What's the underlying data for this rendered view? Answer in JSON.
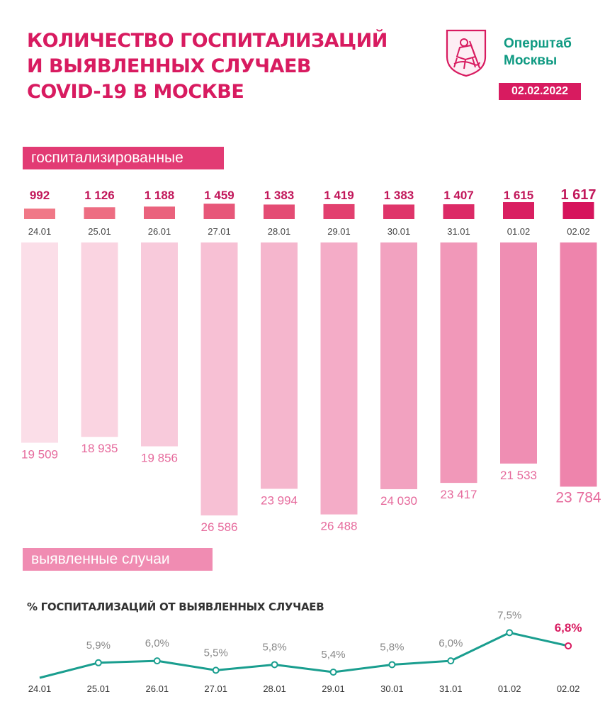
{
  "header": {
    "title_lines": [
      "КОЛИЧЕСТВО ГОСПИТАЛИЗАЦИЙ",
      "И ВЫЯВЛЕННЫХ СЛУЧАЕВ",
      "COVID-19 В МОСКВЕ"
    ],
    "org_lines": [
      "Оперштаб",
      "Москвы"
    ],
    "date": "02.02.2022"
  },
  "labels": {
    "hospitalized": "госпитализированные",
    "cases": "выявленные случаи",
    "rate_title": "% ГОСПИТАЛИЗАЦИЙ ОТ ВЫЯВЛЕННЫХ СЛУЧАЕВ"
  },
  "colors": {
    "accent": "#d81b60",
    "teal": "#1a9e8f"
  },
  "chart_data": [
    {
      "type": "bar",
      "categories": [
        "24.01",
        "25.01",
        "26.01",
        "27.01",
        "28.01",
        "29.01",
        "30.01",
        "31.01",
        "01.02",
        "02.02"
      ],
      "values": [
        992,
        1126,
        1188,
        1459,
        1383,
        1419,
        1383,
        1407,
        1615,
        1617
      ],
      "value_labels": [
        "992",
        "1 126",
        "1 188",
        "1 459",
        "1 383",
        "1 419",
        "1 383",
        "1 407",
        "1 615",
        "1 617"
      ]
    },
    {
      "type": "bar",
      "categories": [
        "24.01",
        "25.01",
        "26.01",
        "27.01",
        "28.01",
        "29.01",
        "30.01",
        "31.01",
        "01.02",
        "02.02"
      ],
      "values": [
        19509,
        18935,
        19856,
        26586,
        23994,
        26488,
        24030,
        23417,
        21533,
        23784
      ],
      "value_labels": [
        "19 509",
        "18 935",
        "19 856",
        "26 586",
        "23 994",
        "26 488",
        "24 030",
        "23 417",
        "21 533",
        "23 784"
      ]
    },
    {
      "type": "line",
      "title": "% ГОСПИТАЛИЗАЦИЙ ОТ ВЫЯВЛЕННЫХ СЛУЧАЕВ",
      "categories": [
        "24.01",
        "25.01",
        "26.01",
        "27.01",
        "28.01",
        "29.01",
        "30.01",
        "31.01",
        "01.02",
        "02.02"
      ],
      "values": [
        5.1,
        5.9,
        6.0,
        5.5,
        5.8,
        5.4,
        5.8,
        6.0,
        7.5,
        6.8
      ],
      "value_labels": [
        "",
        "5,9%",
        "6,0%",
        "5,5%",
        "5,8%",
        "5,4%",
        "5,8%",
        "6,0%",
        "7,5%",
        "6,8%"
      ]
    }
  ]
}
